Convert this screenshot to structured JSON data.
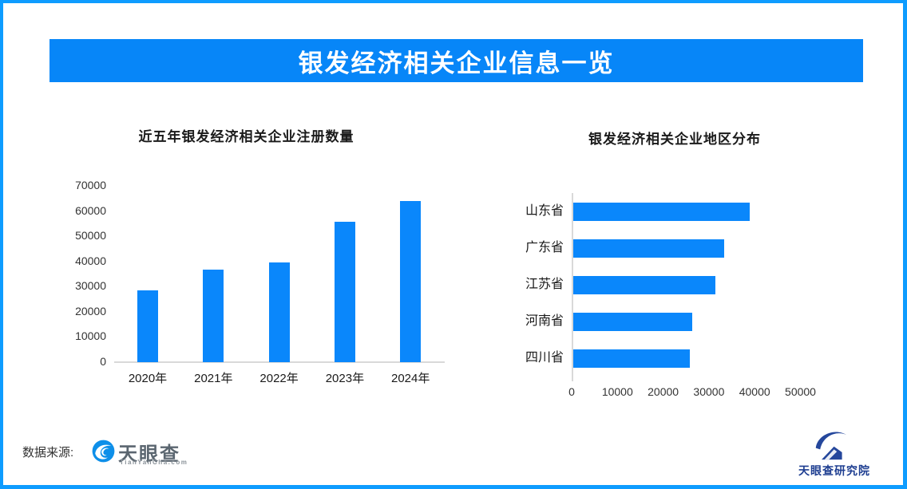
{
  "header": {
    "title": "银发经济相关企业信息一览"
  },
  "chart_data": [
    {
      "type": "bar",
      "orientation": "vertical",
      "title": "近五年银发经济相关企业注册数量",
      "categories": [
        "2020年",
        "2021年",
        "2022年",
        "2023年",
        "2024年"
      ],
      "values": [
        28600,
        36600,
        39700,
        55700,
        63900
      ],
      "xlabel": "",
      "ylabel": "",
      "ylim": [
        0,
        70000
      ],
      "yticks": [
        0,
        10000,
        20000,
        30000,
        40000,
        50000,
        60000,
        70000
      ],
      "grid": false,
      "legend": null,
      "bar_color": "#0a87fb"
    },
    {
      "type": "bar",
      "orientation": "horizontal",
      "title": "银发经济相关企业地区分布",
      "categories": [
        "山东省",
        "广东省",
        "江苏省",
        "河南省",
        "四川省"
      ],
      "values": [
        38500,
        33000,
        31000,
        26000,
        25500
      ],
      "xlabel": "",
      "ylabel": "",
      "xlim": [
        0,
        50000
      ],
      "xticks": [
        0,
        10000,
        20000,
        30000,
        40000,
        50000
      ],
      "grid": false,
      "legend": null,
      "bar_color": "#0a87fb"
    }
  ],
  "footer": {
    "source_label": "数据来源:",
    "tianyancha_name": "天眼查",
    "tianyancha_domain": "TianYanCha.com",
    "institute_name": "天眼查研究院"
  },
  "colors": {
    "frame_border": "#0e9cff",
    "title_bar_bg": "#0786f8",
    "bar_blue": "#0a87fb",
    "axis_gray": "#d9d9d9",
    "dark_text": "#1a1a1a",
    "tick_text": "#333333",
    "tyc_logo_blue": "#0e8fe9",
    "tyc_text_gray": "#5b6670",
    "institute_navy": "#1e3e91"
  }
}
